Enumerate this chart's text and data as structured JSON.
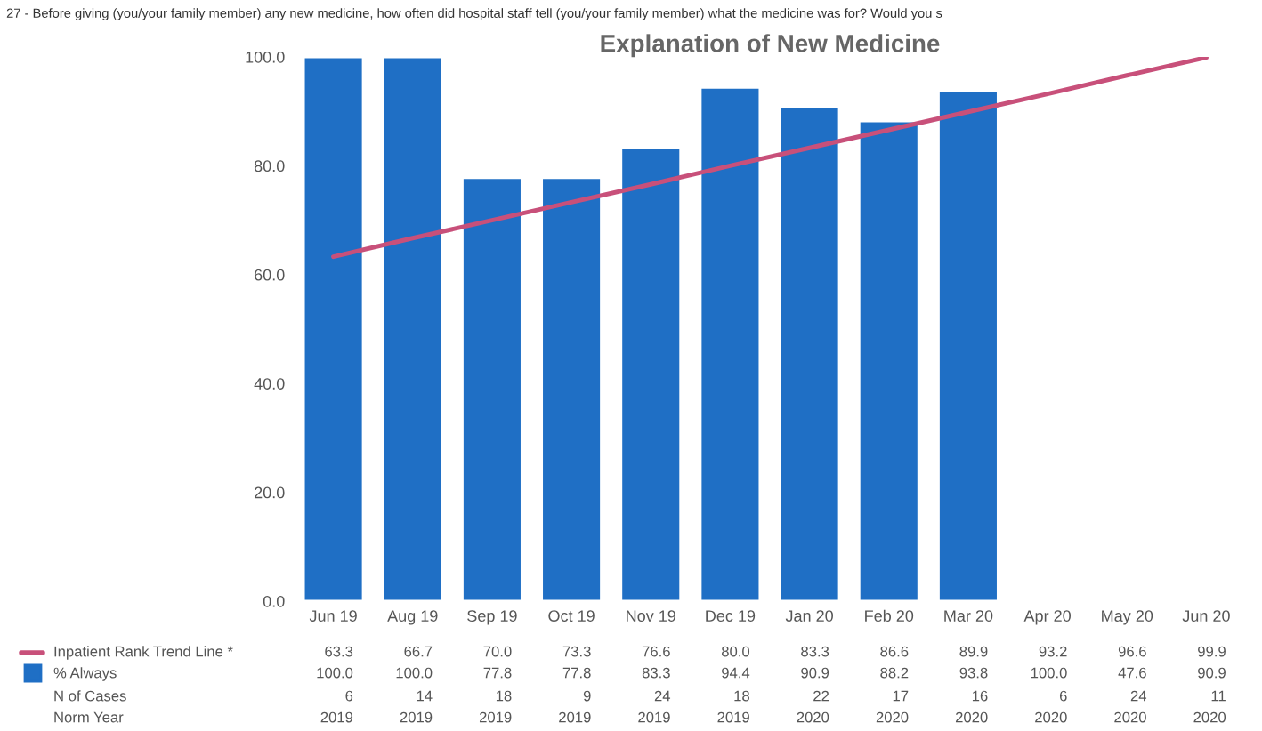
{
  "chart_data": {
    "type": "bar",
    "title": "Explanation of New Medicine",
    "subtitle": "27 - Before giving (you/your family member) any new medicine, how often did hospital staff tell (you/your family member) what the medicine was for? Would you s",
    "categories": [
      "Jun 19",
      "Aug 19",
      "Sep 19",
      "Oct 19",
      "Nov 19",
      "Dec 19",
      "Jan 20",
      "Feb 20",
      "Mar 20",
      "Apr 20",
      "May 20",
      "Jun 20"
    ],
    "series": [
      {
        "name": "Inpatient Rank Trend Line *",
        "type": "line",
        "color": "#c8507a",
        "values": [
          63.3,
          66.7,
          70.0,
          73.3,
          76.6,
          80.0,
          83.3,
          86.6,
          89.9,
          93.2,
          96.6,
          99.9
        ],
        "value_labels": [
          "63.3",
          "66.7",
          "70.0",
          "73.3",
          "76.6",
          "80.0",
          "83.3",
          "86.6",
          "89.9",
          "93.2",
          "96.6",
          "99.9"
        ]
      },
      {
        "name": "% Always",
        "color": "#1f6fc5",
        "values": [
          100.0,
          100.0,
          77.8,
          77.8,
          83.3,
          94.4,
          90.9,
          88.2,
          93.8,
          null,
          null,
          null
        ],
        "value_labels": [
          "100.0",
          "100.0",
          "77.8",
          "77.8",
          "83.3",
          "94.4",
          "90.9",
          "88.2",
          "93.8",
          "100.0",
          "47.6",
          "90.9"
        ]
      },
      {
        "name": "N of Cases",
        "type": "other",
        "values": [
          null,
          null,
          null,
          null,
          null,
          null,
          null,
          null,
          null,
          null,
          null,
          null
        ],
        "value_labels": [
          "6",
          "14",
          "18",
          "9",
          "24",
          "18",
          "22",
          "17",
          "16",
          "6",
          "24",
          "11"
        ]
      },
      {
        "name": "Norm Year",
        "type": "other",
        "values": [
          null,
          null,
          null,
          null,
          null,
          null,
          null,
          null,
          null,
          null,
          null,
          null
        ],
        "value_labels": [
          "2019",
          "2019",
          "2019",
          "2019",
          "2019",
          "2019",
          "2020",
          "2020",
          "2020",
          "2020",
          "2020",
          "2020"
        ]
      }
    ],
    "ylim": [
      0,
      100
    ],
    "yticks": [
      {
        "value": 0,
        "label": "0.0"
      },
      {
        "value": 20,
        "label": "20.0"
      },
      {
        "value": 40,
        "label": "40.0"
      },
      {
        "value": 60,
        "label": "60.0"
      },
      {
        "value": 80,
        "label": "80.0"
      },
      {
        "value": 100,
        "label": "100.0"
      }
    ],
    "grid": false,
    "legend": "bottom left"
  }
}
